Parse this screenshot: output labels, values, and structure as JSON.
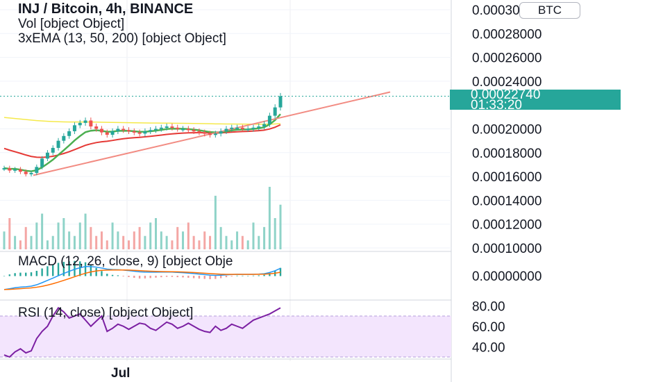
{
  "header": {
    "title": "INJ / Bitcoin, 4h, BINANCE",
    "vol_legend": "Vol [object Object]",
    "ema_legend": "3xEMA (13, 50, 200) [object Object]",
    "macd_legend": "MACD (12, 26, close, 9) [object Obje",
    "rsi_legend": "RSI (14, close) [object Object]"
  },
  "currency_badge": "BTC",
  "price_tag": {
    "price": "0.00022740",
    "countdown": "01:33:20",
    "color": "#26a69a"
  },
  "x_axis": {
    "label": "Jul"
  },
  "colors": {
    "up": "#26a69a",
    "down": "#ef5350",
    "ema13": "#4caf50",
    "ema50": "#e53935",
    "ema200": "#f5e94a",
    "trendline": "#f28b82",
    "rsi": "#7b1fa2",
    "rsi_band": "#f3e5fd"
  },
  "chart_data": [
    {
      "type": "candlestick",
      "title": "INJ / Bitcoin, 4h, BINANCE",
      "y_ticks": [
        "0.00030000",
        "0.00028000",
        "0.00026000",
        "0.00024000",
        "0.00022740",
        "0.00020000",
        "0.00018000",
        "0.00016000",
        "0.00014000",
        "0.00012000",
        "0.00010000"
      ],
      "ylim": [
        0.0001,
        0.0003
      ],
      "last_price": 0.0002274,
      "closes": [
        0.000167,
        0.000165,
        0.000166,
        0.000164,
        0.000162,
        0.000163,
        0.000168,
        0.000175,
        0.00018,
        0.000184,
        0.00019,
        0.000194,
        0.000198,
        0.000203,
        0.000205,
        0.000207,
        0.000202,
        0.0002,
        0.000197,
        0.000195,
        0.000198,
        0.0002,
        0.000199,
        0.000198,
        0.000197,
        0.000196,
        0.000198,
        0.000199,
        0.0002,
        0.000201,
        0.000202,
        0.000201,
        0.0002,
        0.0002,
        0.000199,
        0.000198,
        0.000197,
        0.000196,
        0.000195,
        0.000196,
        0.000198,
        0.0002,
        0.000201,
        0.000201,
        0.0002,
        0.0002,
        0.000201,
        0.000202,
        0.000204,
        0.000211,
        0.000218,
        0.0002274
      ]
    },
    {
      "type": "bar",
      "title": "Vol",
      "values": [
        4,
        7,
        3,
        2,
        5,
        3,
        6,
        8,
        2,
        3,
        6,
        7,
        4,
        3,
        6,
        8,
        5,
        3,
        4,
        2,
        6,
        4,
        3,
        2,
        4,
        5,
        3,
        6,
        7,
        4,
        3,
        2,
        5,
        4,
        6,
        3,
        2,
        4,
        3,
        12,
        5,
        3,
        2,
        4,
        3,
        2,
        6,
        3,
        5,
        14,
        7,
        10
      ]
    },
    {
      "type": "line",
      "title": "MACD (12, 26, close, 9)",
      "y_ticks": [
        "0.00000000"
      ]
    },
    {
      "type": "line",
      "title": "RSI (14, close)",
      "y_ticks": [
        "80.00",
        "60.00",
        "40.00"
      ],
      "band": [
        30,
        70
      ],
      "values": [
        32,
        30,
        35,
        38,
        34,
        36,
        48,
        55,
        60,
        70,
        78,
        74,
        68,
        70,
        72,
        66,
        60,
        65,
        70,
        55,
        58,
        62,
        60,
        57,
        60,
        63,
        62,
        58,
        56,
        60,
        64,
        62,
        58,
        60,
        63,
        60,
        57,
        55,
        54,
        60,
        56,
        58,
        62,
        60,
        58,
        62,
        66,
        68,
        70,
        72,
        75,
        78
      ]
    }
  ]
}
